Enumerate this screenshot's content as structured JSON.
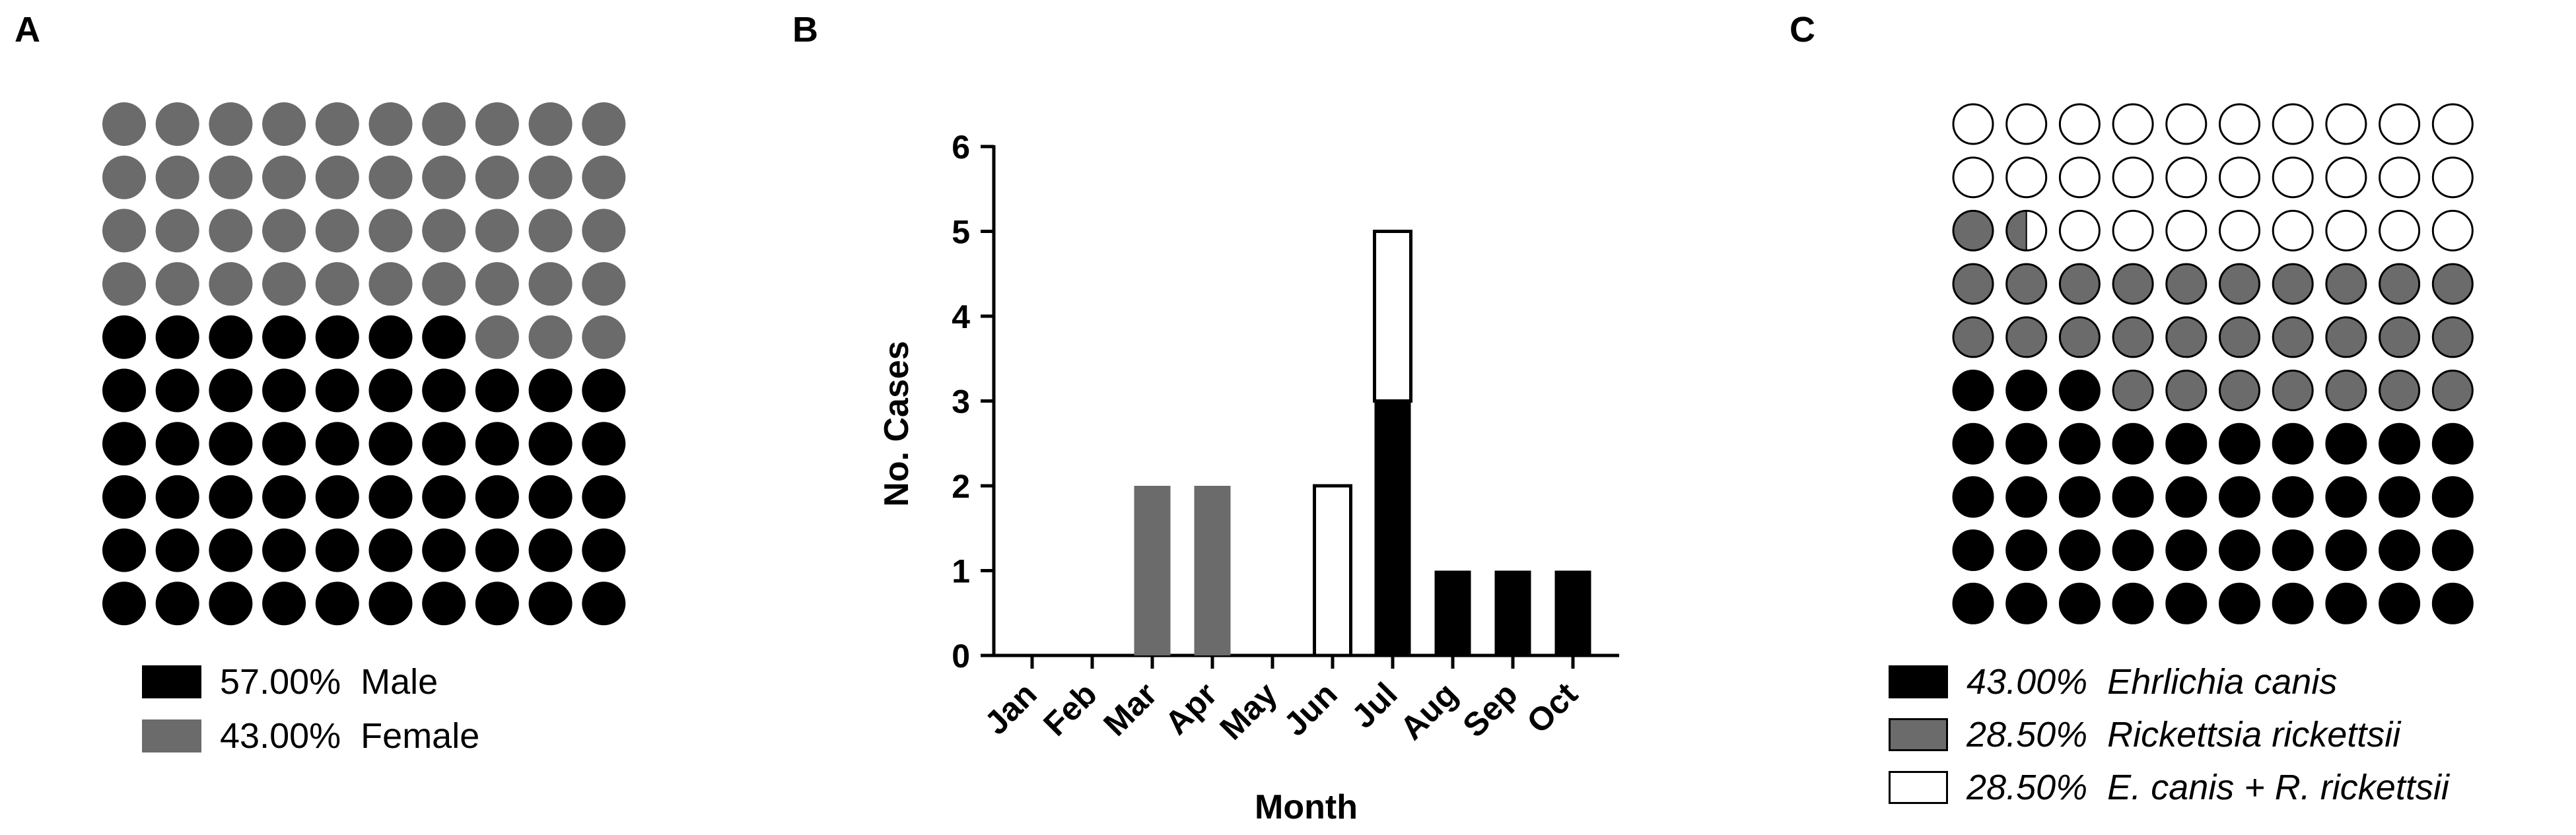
{
  "panels": {
    "a": "A",
    "b": "B",
    "c": "C"
  },
  "colors": {
    "black": "#000000",
    "gray": "#6b6b6b",
    "white": "#ffffff"
  },
  "chart_data": [
    {
      "type": "waffle",
      "rows": 10,
      "cols": 10,
      "series": [
        {
          "name": "Male",
          "percent": 57.0,
          "cells": 57,
          "color": "#000000"
        },
        {
          "name": "Female",
          "percent": 43.0,
          "cells": 43,
          "color": "#6b6b6b"
        }
      ],
      "legend": [
        {
          "percent_label": "57.00%",
          "label": "Male",
          "color": "#000000"
        },
        {
          "percent_label": "43.00%",
          "label": "Female",
          "color": "#6b6b6b"
        }
      ]
    },
    {
      "type": "bar",
      "stacked": true,
      "categories": [
        "Jan",
        "Feb",
        "Mar",
        "Apr",
        "May",
        "Jun",
        "Jul",
        "Aug",
        "Sep",
        "Oct"
      ],
      "series": [
        {
          "color": "#000000",
          "values": [
            0,
            0,
            0,
            0,
            0,
            0,
            3,
            1,
            1,
            1
          ]
        },
        {
          "color": "#6b6b6b",
          "values": [
            0,
            0,
            2,
            2,
            0,
            0,
            0,
            0,
            0,
            0
          ]
        },
        {
          "color": "#ffffff",
          "values": [
            0,
            0,
            0,
            0,
            0,
            2,
            2,
            0,
            0,
            0
          ]
        }
      ],
      "xlabel": "Month",
      "ylabel": "No. Cases",
      "ylim": [
        0,
        6
      ],
      "yticks": [
        "0",
        "1",
        "2",
        "3",
        "4",
        "5",
        "6"
      ],
      "grid": false
    },
    {
      "type": "waffle",
      "rows": 10,
      "cols": 10,
      "series": [
        {
          "name": "Ehrlichia canis",
          "percent": 43.0,
          "cells": 43.0,
          "color": "#000000"
        },
        {
          "name": "Rickettsia rickettsii",
          "percent": 28.5,
          "cells": 28.5,
          "color": "#6b6b6b"
        },
        {
          "name": "E. canis + R. rickettsii",
          "percent": 28.5,
          "cells": 28.5,
          "color": "#ffffff"
        }
      ],
      "legend": [
        {
          "percent_label": "43.00%",
          "label": "Ehrlichia canis",
          "color": "#000000"
        },
        {
          "percent_label": "28.50%",
          "label": "Rickettsia rickettsii",
          "color": "#6b6b6b"
        },
        {
          "percent_label": "28.50%",
          "label": "E. canis + R. rickettsii",
          "color": "#ffffff"
        }
      ]
    }
  ]
}
